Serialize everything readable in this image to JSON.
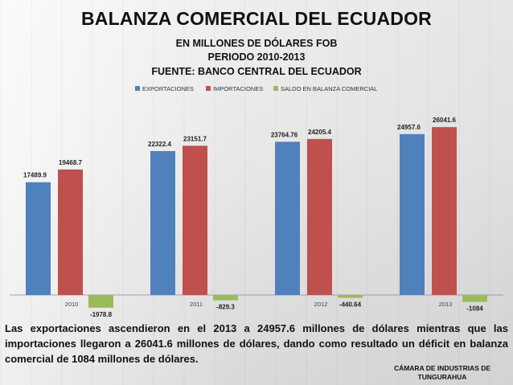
{
  "title": "BALANZA COMERCIAL DEL ECUADOR",
  "subtitles": [
    "EN MILLONES DE DÓLARES FOB",
    "PERIODO 2010-2013",
    "FUENTE: BANCO CENTRAL DEL ECUADOR"
  ],
  "description": "Las exportaciones ascendieron en el 2013 a 24957.6 millones de dólares mientras que las importaciones llegaron a 26041.6 millones de dólares, dando como resultado un déficit en balanza comercial de 1084 millones de dólares.",
  "source_note": "CÁMARA DE INDUSTRIAS DE TUNGURAHUA",
  "chart_data": {
    "type": "bar",
    "title": "",
    "xlabel": "",
    "ylabel": "",
    "categories": [
      "2010",
      "2011",
      "2012",
      "2013"
    ],
    "series": [
      {
        "name": "EXPORTACIONES",
        "color": "#4f81bd",
        "values": [
          17489.9,
          22322.4,
          23764.76,
          24957.6
        ],
        "labels": [
          "17489.9",
          "22322.4",
          "23764.76",
          "24957.6"
        ]
      },
      {
        "name": "IMPORTACIONES",
        "color": "#c0504d",
        "values": [
          19468.7,
          23151.7,
          24205.4,
          26041.6
        ],
        "labels": [
          "19468.7",
          "23151.7",
          "24205.4",
          "26041.6"
        ]
      },
      {
        "name": "SALDO EN BALANZA COMERCIAL",
        "color": "#9bbb59",
        "values": [
          -1978.8,
          -829.3,
          -440.64,
          -1084
        ],
        "labels": [
          "-1978.8",
          "-829.3",
          "-440.64",
          "-1084"
        ]
      }
    ],
    "ylim": [
      -2000,
      28000
    ],
    "legend": "top",
    "grid": false
  }
}
